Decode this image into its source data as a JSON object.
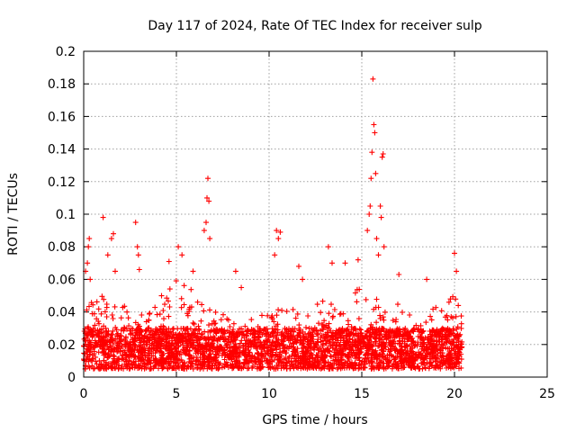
{
  "chart_data": {
    "type": "scatter",
    "title": "Day 117 of 2024, Rate Of TEC Index for receiver sulp",
    "xlabel": "GPS time / hours",
    "ylabel": "ROTI / TECUs",
    "xlim": [
      0,
      25
    ],
    "ylim": [
      0,
      0.2
    ],
    "xticks": [
      0,
      5,
      10,
      15,
      20,
      25
    ],
    "xtick_labels": [
      "0",
      "5",
      "10",
      "15",
      "20",
      "25"
    ],
    "yticks": [
      0,
      0.02,
      0.04,
      0.06,
      0.08,
      0.1,
      0.12,
      0.14,
      0.16,
      0.18,
      0.2
    ],
    "ytick_labels": [
      "0",
      "0.02",
      "0.04",
      "0.06",
      "0.08",
      "0.1",
      "0.12",
      "0.14",
      "0.16",
      "0.18",
      "0.2"
    ],
    "grid": true,
    "marker": "+",
    "color": "#ff0000",
    "series": [
      {
        "name": "ROTI",
        "points": [
          [
            0.1,
            0.065
          ],
          [
            0.2,
            0.07
          ],
          [
            0.25,
            0.08
          ],
          [
            0.3,
            0.085
          ],
          [
            0.35,
            0.06
          ],
          [
            1.05,
            0.098
          ],
          [
            1.3,
            0.075
          ],
          [
            1.5,
            0.085
          ],
          [
            1.6,
            0.088
          ],
          [
            1.7,
            0.065
          ],
          [
            2.8,
            0.095
          ],
          [
            2.9,
            0.08
          ],
          [
            2.95,
            0.075
          ],
          [
            3.0,
            0.066
          ],
          [
            4.6,
            0.071
          ],
          [
            5.1,
            0.08
          ],
          [
            5.3,
            0.075
          ],
          [
            5.9,
            0.065
          ],
          [
            6.5,
            0.09
          ],
          [
            6.6,
            0.095
          ],
          [
            6.65,
            0.11
          ],
          [
            6.7,
            0.122
          ],
          [
            6.75,
            0.108
          ],
          [
            6.8,
            0.085
          ],
          [
            8.2,
            0.065
          ],
          [
            8.5,
            0.055
          ],
          [
            10.4,
            0.09
          ],
          [
            10.5,
            0.085
          ],
          [
            10.6,
            0.089
          ],
          [
            10.3,
            0.075
          ],
          [
            11.6,
            0.068
          ],
          [
            11.8,
            0.06
          ],
          [
            13.2,
            0.08
          ],
          [
            13.4,
            0.07
          ],
          [
            14.1,
            0.07
          ],
          [
            14.8,
            0.072
          ],
          [
            15.3,
            0.09
          ],
          [
            15.4,
            0.1
          ],
          [
            15.45,
            0.105
          ],
          [
            15.5,
            0.122
          ],
          [
            15.55,
            0.138
          ],
          [
            15.6,
            0.183
          ],
          [
            15.65,
            0.155
          ],
          [
            15.7,
            0.15
          ],
          [
            15.75,
            0.125
          ],
          [
            15.8,
            0.085
          ],
          [
            15.9,
            0.075
          ],
          [
            16.0,
            0.105
          ],
          [
            16.05,
            0.098
          ],
          [
            16.1,
            0.135
          ],
          [
            16.15,
            0.137
          ],
          [
            16.2,
            0.08
          ],
          [
            17.0,
            0.063
          ],
          [
            18.5,
            0.06
          ],
          [
            20.0,
            0.076
          ],
          [
            20.1,
            0.065
          ]
        ]
      }
    ],
    "dense_band": {
      "x_range": [
        0,
        20.4
      ],
      "typical_range": [
        0.005,
        0.03
      ],
      "upper_envelope": [
        [
          0,
          0.045
        ],
        [
          1,
          0.05
        ],
        [
          2,
          0.045
        ],
        [
          3,
          0.04
        ],
        [
          4,
          0.05
        ],
        [
          5,
          0.06
        ],
        [
          6,
          0.055
        ],
        [
          7,
          0.04
        ],
        [
          8,
          0.04
        ],
        [
          9,
          0.035
        ],
        [
          10,
          0.045
        ],
        [
          11,
          0.045
        ],
        [
          12,
          0.04
        ],
        [
          13,
          0.05
        ],
        [
          14,
          0.04
        ],
        [
          15,
          0.06
        ],
        [
          16,
          0.05
        ],
        [
          17,
          0.045
        ],
        [
          18,
          0.035
        ],
        [
          19,
          0.045
        ],
        [
          20,
          0.05
        ],
        [
          20.4,
          0.04
        ]
      ]
    }
  }
}
